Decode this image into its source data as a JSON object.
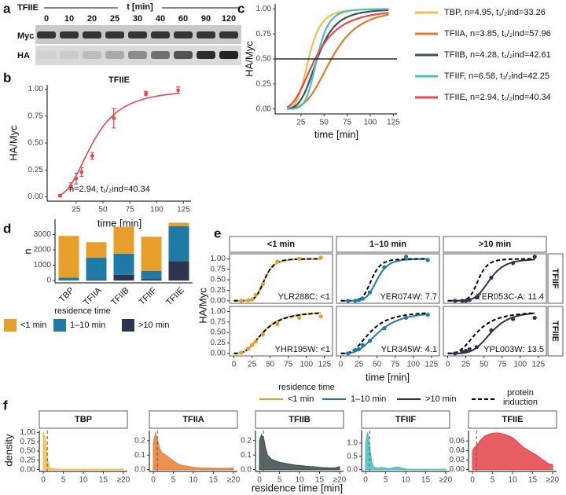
{
  "panel_a": {
    "letter": "a",
    "protein": "TFIIE",
    "time_label": "t [min]",
    "times": [
      0,
      10,
      20,
      25,
      30,
      40,
      60,
      90,
      120
    ],
    "rows": [
      "Myc",
      "HA"
    ]
  },
  "chart_data": [
    {
      "type": "scatter",
      "panel": "b",
      "title": "TFIIE",
      "x_label": "time [min]",
      "y_label": "HA/Myc",
      "x": [
        10,
        20,
        25,
        30,
        40,
        60,
        90,
        120
      ],
      "values": [
        0.01,
        0.1,
        0.17,
        0.23,
        0.38,
        0.73,
        0.96,
        0.99
      ],
      "errors": [
        0.01,
        0.03,
        0.05,
        0.04,
        0.03,
        0.09,
        0.02,
        0.03
      ],
      "color": "#E5484D",
      "fit": {
        "n": 2.94,
        "t_half": 40.34,
        "label": "n=2.94,  t₁/₂ind=40.34"
      },
      "xlim": [
        -2,
        132
      ],
      "ylim": [
        -0.04,
        1.04
      ],
      "xticks": [
        25,
        50,
        75,
        100,
        125
      ],
      "yticks": [
        {
          "value": 0,
          "label": "0.00"
        },
        0.25,
        {
          "value": 0.5,
          "label": "0.50"
        },
        0.75,
        {
          "value": 1,
          "label": "1.00"
        }
      ]
    },
    {
      "type": "line",
      "panel": "c",
      "x_label": "time [min]",
      "y_label": "HA/Myc",
      "x_range": [
        10,
        120
      ],
      "hline": 0.5,
      "xlim": [
        -3,
        129
      ],
      "ylim": [
        -0.05,
        1.05
      ],
      "xticks": [
        25,
        50,
        75,
        100,
        125
      ],
      "yticks": [
        {
          "value": 0,
          "label": "0.00"
        },
        0.25,
        {
          "value": 0.5,
          "label": "0.50"
        },
        0.75,
        {
          "value": 1,
          "label": "1.00"
        }
      ],
      "series": [
        {
          "name": "TBP, n=4.95,  t₁/₂ind=33.26",
          "color": "#EFC04F",
          "n": 4.95,
          "t_half": 33.26
        },
        {
          "name": "TFIIA, n=3.85,  t₁/₂ind=57.96",
          "color": "#E07B2A",
          "n": 3.85,
          "t_half": 57.96
        },
        {
          "name": "TFIIB, n=4.28,  t₁/₂ind=42.61",
          "color": "#3F5152",
          "n": 4.28,
          "t_half": 42.61
        },
        {
          "name": "TFIIF, n=6.58,  t₁/₂ind=42.25",
          "color": "#4DBFBF",
          "n": 6.58,
          "t_half": 42.25
        },
        {
          "name": "TFIIE, n=2.94,  t₁/₂ind=40.34",
          "color": "#E5484D",
          "n": 2.94,
          "t_half": 40.34
        }
      ]
    },
    {
      "type": "bar",
      "panel": "d",
      "y_label": "n",
      "legend_title": "residence time",
      "stacked": true,
      "categories": [
        "TBP",
        "TFIIA",
        "TFIIB",
        "TFIIF",
        "TFIIE"
      ],
      "series": [
        {
          "name": "<1 min",
          "color": "#E69F2B",
          "values": [
            2720,
            1000,
            1750,
            2230,
            230
          ]
        },
        {
          "name": "1–10 min",
          "color": "#1F7BA6",
          "values": [
            170,
            1450,
            1380,
            530,
            2270
          ]
        },
        {
          "name": ">10 min",
          "color": "#2E3450",
          "values": [
            20,
            50,
            370,
            100,
            1270
          ]
        }
      ],
      "ylim": [
        -150,
        4000
      ],
      "yticks": [
        0,
        1000,
        2000,
        3000
      ]
    },
    {
      "type": "facet_grid",
      "panel": "e",
      "x_label": "time [min]",
      "y_label": "HA/Myc",
      "legend_title": "residence time",
      "induction_label": "protein induction",
      "columns": [
        "<1 min",
        "1–10 min",
        ">10 min"
      ],
      "colors": [
        "#E69F2B",
        "#1F7BA6",
        "#2E3450"
      ],
      "x": [
        10,
        20,
        25,
        30,
        40,
        60,
        90,
        120
      ],
      "x_range": [
        0,
        120
      ],
      "xlim": [
        -6,
        136
      ],
      "ylim": [
        -0.06,
        1.12
      ],
      "xticks": [
        0,
        25,
        50,
        75,
        100,
        125
      ],
      "yticks": [
        {
          "value": 0,
          "label": "0.00"
        },
        0.25,
        {
          "value": 0.5,
          "label": "0.50"
        },
        0.75,
        {
          "value": 1,
          "label": "1.00"
        }
      ],
      "rows": [
        {
          "name": "TFIIF",
          "induction": {
            "n": 6.58,
            "t_half": 42.25
          },
          "facets": [
            {
              "label": "YLR288C: <1",
              "values": [
                0,
                0.01,
                0.03,
                0.14,
                0.4,
                0.93,
                1.0,
                1.03
              ],
              "fit": {
                "n": 6.2,
                "t_half": 42
              }
            },
            {
              "label": "YER074W: 7.7",
              "values": [
                0,
                0,
                0.02,
                0.05,
                0.2,
                0.8,
                1.05,
                0.97
              ],
              "fit": {
                "n": 6.5,
                "t_half": 50
              }
            },
            {
              "label": "YER053C-A: 11.4",
              "values": [
                0,
                0,
                0,
                0.02,
                0.08,
                0.55,
                0.9,
                1.05
              ],
              "fit": {
                "n": 5.5,
                "t_half": 58
              }
            }
          ]
        },
        {
          "name": "TFIIE",
          "induction": {
            "n": 2.94,
            "t_half": 40.34
          },
          "facets": [
            {
              "label": "YHR195W: <1",
              "values": [
                0.02,
                0.12,
                0.2,
                0.28,
                0.45,
                0.7,
                0.85,
                0.88
              ],
              "fit": {
                "n": 3,
                "t_half": 40
              }
            },
            {
              "label": "YLR345W: 4.1",
              "values": [
                0,
                0.08,
                0.1,
                0.2,
                0.3,
                0.6,
                0.85,
                0.92
              ],
              "fit": {
                "n": 3.2,
                "t_half": 52
              }
            },
            {
              "label": "YPL003W: 13.5",
              "values": [
                0,
                0.04,
                0.06,
                0.1,
                0.15,
                0.55,
                0.82,
                0.85
              ],
              "fit": {
                "n": 4.5,
                "t_half": 60
              }
            }
          ]
        }
      ]
    },
    {
      "type": "density_facets",
      "panel": "f",
      "x_label": "residence time [min]",
      "y_label": "density",
      "x": [
        0,
        0.5,
        1,
        1.5,
        2,
        3,
        4,
        5,
        6,
        7,
        8,
        9,
        10,
        11,
        12,
        13,
        14,
        15,
        16,
        17,
        18,
        19,
        20
      ],
      "xlim": [
        -1,
        21
      ],
      "xticks": [
        0,
        5,
        10,
        15,
        {
          "value": 20,
          "label": "≥20"
        }
      ],
      "vline": 1,
      "facets": [
        {
          "name": "TBP",
          "color": "#EFC04F",
          "ylim": [
            -0.05,
            1.05
          ],
          "yticks": [
            {
              "value": 0,
              "label": "0.00"
            },
            0.25,
            {
              "value": 0.5,
              "label": "0.50"
            },
            0.75,
            {
              "value": 1,
              "label": "1.00"
            }
          ],
          "values": [
            1.0,
            0.85,
            0.3,
            0.06,
            0.03,
            0.015,
            0.01,
            0.01,
            0.01,
            0.01,
            0.01,
            0.01,
            0.01,
            0.01,
            0.01,
            0.01,
            0.01,
            0.01,
            0.01,
            0.01,
            0.01,
            0.01,
            0.015
          ]
        },
        {
          "name": "TFIIA",
          "color": "#E8823A",
          "ylim": [
            -0.013,
            0.27
          ],
          "yticks": [
            {
              "value": 0,
              "label": "0.0"
            },
            0.1,
            0.2
          ],
          "values": [
            0.18,
            0.25,
            0.21,
            0.15,
            0.12,
            0.1,
            0.08,
            0.06,
            0.04,
            0.03,
            0.025,
            0.02,
            0.015,
            0.012,
            0.01,
            0.01,
            0.01,
            0.009,
            0.008,
            0.008,
            0.008,
            0.008,
            0.012
          ]
        },
        {
          "name": "TFIIB",
          "color": "#3F5152",
          "ylim": [
            -0.013,
            0.27
          ],
          "yticks": [
            {
              "value": 0,
              "label": "0.0"
            },
            0.1,
            0.2
          ],
          "values": [
            0.2,
            0.24,
            0.22,
            0.15,
            0.1,
            0.07,
            0.06,
            0.05,
            0.045,
            0.04,
            0.035,
            0.03,
            0.028,
            0.025,
            0.022,
            0.02,
            0.018,
            0.015,
            0.013,
            0.012,
            0.01,
            0.012,
            0.02
          ]
        },
        {
          "name": "TFIIF",
          "color": "#4DBFBF",
          "ylim": [
            -0.07,
            1.47
          ],
          "yticks": [
            {
              "value": 0,
              "label": "0.0"
            },
            0.5,
            {
              "value": 1,
              "label": "1.0"
            }
          ],
          "values": [
            1.0,
            1.4,
            0.9,
            0.3,
            0.1,
            0.05,
            0.08,
            0.05,
            0.03,
            0.07,
            0.1,
            0.06,
            0.02,
            0.01,
            0.01,
            0.01,
            0.01,
            0.01,
            0.01,
            0.01,
            0.01,
            0.01,
            0.02
          ]
        },
        {
          "name": "TFIIE",
          "color": "#E5484D",
          "ylim": [
            -0.004,
            0.082
          ],
          "yticks": [
            {
              "value": 0,
              "label": "0.00"
            },
            0.02,
            0.04,
            0.06
          ],
          "values": [
            0.04,
            0.046,
            0.05,
            0.056,
            0.062,
            0.07,
            0.074,
            0.076,
            0.077,
            0.076,
            0.074,
            0.071,
            0.067,
            0.06,
            0.052,
            0.045,
            0.04,
            0.035,
            0.03,
            0.024,
            0.018,
            0.012,
            0.01
          ]
        }
      ]
    }
  ]
}
